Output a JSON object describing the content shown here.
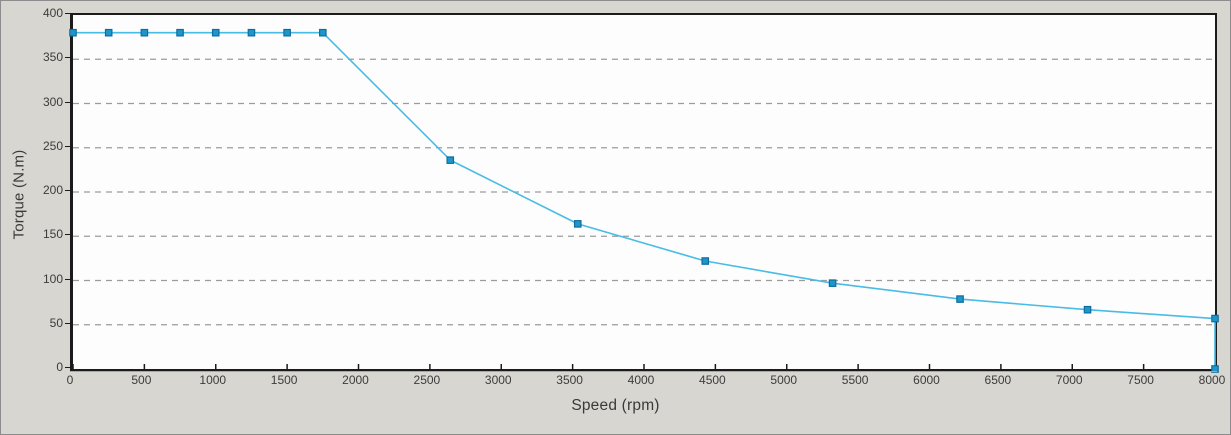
{
  "panel": {
    "background_color": "#d8d6d1",
    "plot_background_color": "#fdfdfd",
    "frame_border_color": "#8c8c8c",
    "axis_color": "#1b1b1b",
    "gridline_color": "#9b9b9b",
    "tick_label_color": "#3c3c3c",
    "axis_label_color": "#3a3a3a"
  },
  "chart_data": {
    "type": "line",
    "title": "",
    "xlabel": "Speed (rpm)",
    "ylabel": "Torque (N.m)",
    "xlim": [
      0,
      8000
    ],
    "ylim": [
      0,
      400
    ],
    "x_ticks": [
      0,
      500,
      1000,
      1500,
      2000,
      2500,
      3000,
      3500,
      4000,
      4500,
      5000,
      5500,
      6000,
      6500,
      7000,
      7500,
      8000
    ],
    "y_ticks": [
      0,
      50,
      100,
      150,
      200,
      250,
      300,
      350,
      400
    ],
    "grid": "horizontal-dashed-only",
    "legend": "none",
    "series": [
      {
        "name": "torque-speed-curve",
        "line_color": "#47bce4",
        "marker": "square",
        "marker_fill": "#1e96cb",
        "marker_stroke": "#0e6d9e",
        "points": [
          [
            0,
            380
          ],
          [
            250,
            380
          ],
          [
            500,
            380
          ],
          [
            750,
            380
          ],
          [
            1000,
            380
          ],
          [
            1250,
            380
          ],
          [
            1500,
            380
          ],
          [
            1750,
            380
          ],
          [
            2643,
            236
          ],
          [
            3536,
            164
          ],
          [
            4429,
            122
          ],
          [
            5321,
            97
          ],
          [
            6214,
            79
          ],
          [
            7107,
            67
          ],
          [
            8000,
            57
          ],
          [
            8000,
            0
          ]
        ]
      }
    ]
  }
}
